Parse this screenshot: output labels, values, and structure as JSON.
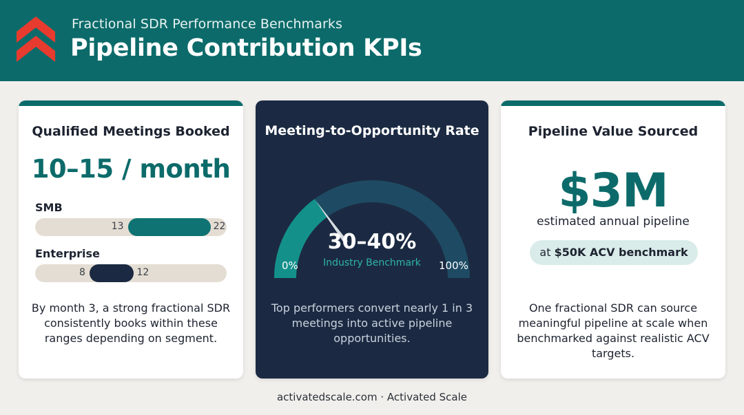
{
  "header": {
    "subtitle": "Fractional SDR Performance Benchmarks",
    "title": "Pipeline Contribution KPIs",
    "logo_icon": "double-chevron-up-icon",
    "colors": {
      "header_bg": "#0c6b6a",
      "logo": "#e63b2e"
    }
  },
  "card_meetings": {
    "title": "Qualified Meetings Booked",
    "range": "10–15 / month",
    "segments": [
      {
        "label": "SMB",
        "low": 13,
        "high": 22,
        "low_label": "13",
        "high_label": "22",
        "color": "#0e7372"
      },
      {
        "label": "Enterprise",
        "low": 8,
        "high": 12,
        "low_label": "8",
        "high_label": "12",
        "color": "#1b2a42"
      }
    ],
    "description": "By month 3, a strong fractional SDR consistently books within these ranges depending on segment."
  },
  "card_conversion": {
    "title": "Meeting-to-Opportunity Rate",
    "gauge": {
      "min": 0,
      "max": 100,
      "low": 30,
      "high": 40,
      "needle": 30
    },
    "value": "30–40%",
    "benchmark_label": "Industry Benchmark",
    "min_label": "0%",
    "max_label": "100%",
    "description": "Top performers convert nearly 1 in 3 meetings into active pipeline opportunities."
  },
  "card_pipeline": {
    "title": "Pipeline Value Sourced",
    "value": "$3M",
    "value_label": "estimated annual pipeline",
    "pill_prefix": "at ",
    "pill_strong": "$50K ACV benchmark",
    "description": "One fractional SDR can source meaningful pipeline at scale when benchmarked against realistic ACV targets."
  },
  "footer": {
    "text": "activatedscale.com · Activated Scale"
  }
}
